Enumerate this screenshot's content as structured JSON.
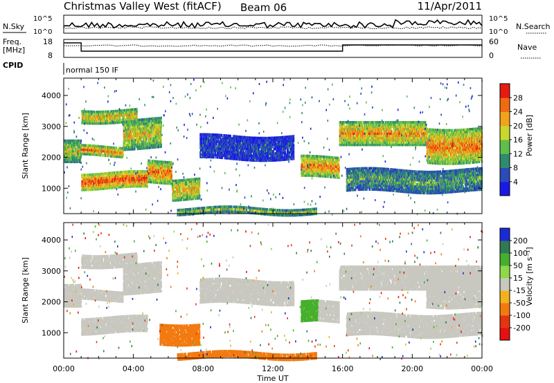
{
  "header": {
    "station": "Christmas Valley West (fitACF)",
    "beam": "Beam 06",
    "date": "11/Apr/2011"
  },
  "strip": {
    "nsky_label": "N.Sky",
    "nsearch_label": "N.Search",
    "nsky_ticks": [
      "10^5",
      "10^0"
    ],
    "nsearch_ticks": [
      "10^5",
      "10^0"
    ],
    "freq_label": "Freq.",
    "freq_unit": "[MHz]",
    "freq_ticks": [
      "18",
      "8"
    ],
    "nave_label": "Nave",
    "nave_ticks": [
      "60",
      "0"
    ],
    "cpid_label": "CPID",
    "cpid_value": "normal 150 IF"
  },
  "chart_data": [
    {
      "type": "heatmap",
      "name": "power",
      "ylabel": "Slant Range [km]",
      "ylim": [
        180,
        4560
      ],
      "yticks": [
        "1000",
        "2000",
        "3000",
        "4000"
      ],
      "xlabel": "Time UT",
      "xlim_hours": [
        0,
        24
      ],
      "xticks": [
        "00:00",
        "04:00",
        "08:00",
        "12:00",
        "16:00",
        "20:00",
        "00:00"
      ],
      "colorbar": {
        "label": "Power [dB]",
        "ticks": [
          "4",
          "8",
          "12",
          "16",
          "20",
          "24",
          "28"
        ],
        "colors": [
          "#1a1ae6",
          "#2c4bb8",
          "#2f8a6f",
          "#5fbf4a",
          "#c9d82c",
          "#f2a21c",
          "#f26a10",
          "#e61b10"
        ]
      },
      "bands": [
        {
          "t": [
            0.0,
            1.0
          ],
          "range": [
            1850,
            2600
          ],
          "level": 0.55
        },
        {
          "t": [
            1.0,
            3.4
          ],
          "range": [
            2050,
            2400
          ],
          "level": 0.85
        },
        {
          "t": [
            3.4,
            5.6
          ],
          "range": [
            2300,
            3300
          ],
          "level": 0.6
        },
        {
          "t": [
            1.0,
            4.2
          ],
          "range": [
            3150,
            3600
          ],
          "level": 0.7
        },
        {
          "t": [
            1.0,
            4.8
          ],
          "range": [
            1000,
            1550
          ],
          "level": 0.95
        },
        {
          "t": [
            4.8,
            6.2
          ],
          "range": [
            1200,
            1950
          ],
          "level": 0.8
        },
        {
          "t": [
            6.2,
            7.8
          ],
          "range": [
            650,
            1350
          ],
          "level": 0.7
        },
        {
          "t": [
            7.8,
            13.2
          ],
          "range": [
            1950,
            2750
          ],
          "level": 0.1
        },
        {
          "t": [
            13.6,
            15.8
          ],
          "range": [
            1350,
            2050
          ],
          "level": 0.8
        },
        {
          "t": [
            15.8,
            20.8
          ],
          "range": [
            2400,
            3200
          ],
          "level": 0.75
        },
        {
          "t": [
            20.8,
            24.0
          ],
          "range": [
            1850,
            3000
          ],
          "level": 0.8
        },
        {
          "t": [
            16.2,
            24.0
          ],
          "range": [
            900,
            1650
          ],
          "level": 0.35
        },
        {
          "t": [
            6.5,
            14.5
          ],
          "range": [
            180,
            420
          ],
          "level": 0.55
        }
      ]
    },
    {
      "type": "heatmap",
      "name": "velocity",
      "ylabel": "Slant Range [km]",
      "ylim": [
        180,
        4560
      ],
      "yticks": [
        "1000",
        "2000",
        "3000",
        "4000"
      ],
      "xlabel": "Time UT",
      "xlim_hours": [
        0,
        24
      ],
      "xticks": [
        "00:00",
        "04:00",
        "08:00",
        "12:00",
        "16:00",
        "20:00",
        "00:00"
      ],
      "colorbar": {
        "label": "Velocity [m s⁻¹]",
        "ticks": [
          "200",
          "100",
          "50",
          "15",
          "-15",
          "-50",
          "-100",
          "-200"
        ],
        "colors": [
          "#1a2bd6",
          "#2f7a55",
          "#45b02c",
          "#8fd84a",
          "#c8c8c0",
          "#f2b21c",
          "#f27a10",
          "#e63410",
          "#e61010"
        ]
      },
      "bands": [
        {
          "t": [
            0.0,
            1.0
          ],
          "range": [
            1850,
            2600
          ],
          "level": 0.0
        },
        {
          "t": [
            1.0,
            3.4
          ],
          "range": [
            2050,
            2400
          ],
          "level": 0.0
        },
        {
          "t": [
            3.4,
            5.6
          ],
          "range": [
            2300,
            3300
          ],
          "level": 0.0
        },
        {
          "t": [
            1.0,
            4.2
          ],
          "range": [
            3150,
            3600
          ],
          "level": 0.0
        },
        {
          "t": [
            1.0,
            4.8
          ],
          "range": [
            1000,
            1550
          ],
          "level": 0.0
        },
        {
          "t": [
            5.5,
            7.8
          ],
          "range": [
            650,
            1350
          ],
          "level": -0.45
        },
        {
          "t": [
            7.8,
            13.2
          ],
          "range": [
            1950,
            2750
          ],
          "level": 0.0
        },
        {
          "t": [
            13.6,
            14.6
          ],
          "range": [
            1350,
            2050
          ],
          "level": 0.4
        },
        {
          "t": [
            14.6,
            15.8
          ],
          "range": [
            1350,
            2050
          ],
          "level": 0.0
        },
        {
          "t": [
            15.8,
            24.0
          ],
          "range": [
            2400,
            3200
          ],
          "level": 0.0
        },
        {
          "t": [
            20.8,
            24.0
          ],
          "range": [
            1850,
            3000
          ],
          "level": 0.0
        },
        {
          "t": [
            16.2,
            24.0
          ],
          "range": [
            900,
            1650
          ],
          "level": 0.0
        },
        {
          "t": [
            6.5,
            14.5
          ],
          "range": [
            180,
            420
          ],
          "level": -0.4
        }
      ]
    }
  ]
}
